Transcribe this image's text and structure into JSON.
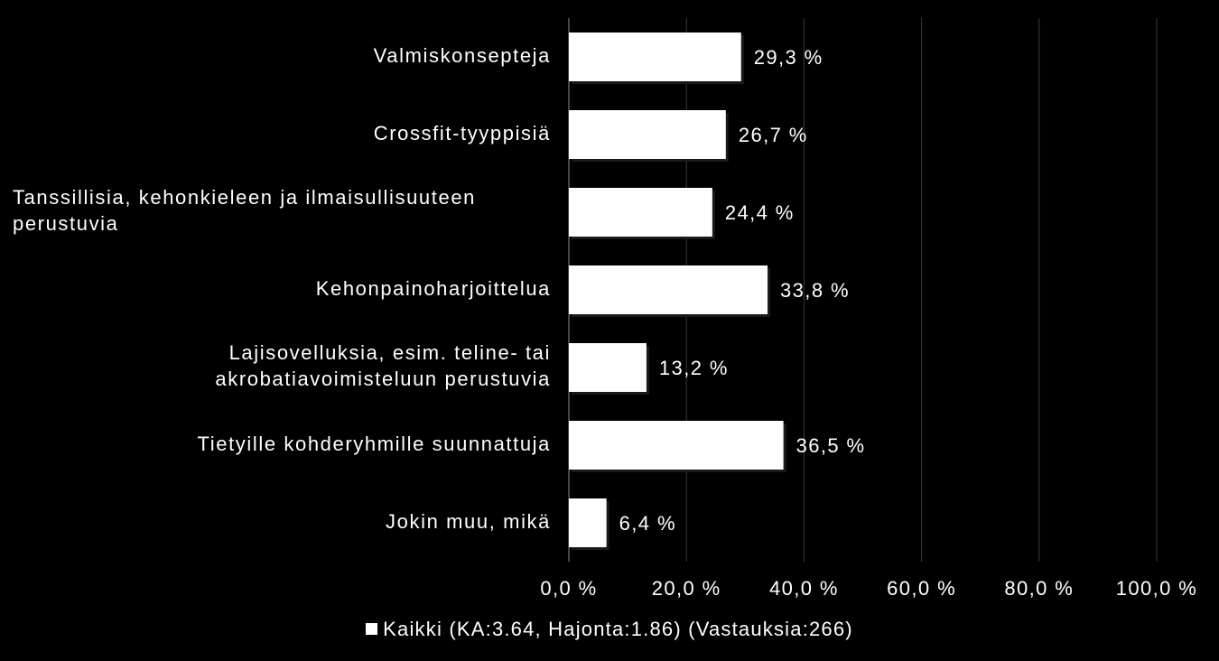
{
  "chart_data": {
    "type": "bar",
    "orientation": "horizontal",
    "categories": [
      "Valmiskonsepteja",
      "Crossfit-tyyppisiä",
      "Tanssillisia, kehonkieleen ja ilmaisullisuuteen perustuvia",
      "Kehonpainoharjoittelua",
      "Lajisovelluksia, esim. teline- tai akrobatiavoimisteluun perustuvia",
      "Tietyille kohderyhmille suunnattuja",
      "Jokin muu, mikä"
    ],
    "category_lines": [
      [
        "Valmiskonsepteja"
      ],
      [
        "Crossfit-tyyppisiä"
      ],
      [
        "Tanssillisia, kehonkieleen ja ilmaisullisuuteen",
        "perustuvia"
      ],
      [
        "Kehonpainoharjoittelua"
      ],
      [
        "Lajisovelluksia, esim. teline- tai",
        "akrobatiavoimisteluun perustuvia"
      ],
      [
        "Tietyille kohderyhmille suunnattuja"
      ],
      [
        "Jokin muu, mikä"
      ]
    ],
    "series": [
      {
        "name": "Kaikki (KA:3.64, Hajonta:1.86) (Vastauksia:266)",
        "values": [
          29.3,
          26.7,
          24.4,
          33.8,
          13.2,
          36.5,
          6.4
        ],
        "data_labels": [
          "29,3 %",
          "26,7 %",
          "24,4 %",
          "33,8 %",
          "13,2 %",
          "36,5 %",
          "6,4 %"
        ],
        "color": "#ffffff"
      }
    ],
    "x_ticks": [
      0,
      20,
      40,
      60,
      80,
      100
    ],
    "x_tick_labels": [
      "0,0 %",
      "20,0 %",
      "40,0 %",
      "60,0 %",
      "80,0 %",
      "100,0 %"
    ],
    "xlim": [
      0,
      100
    ],
    "grid": true,
    "legend_position": "bottom",
    "colors": {
      "background": "#000000",
      "bar": "#ffffff",
      "grid": "#3a3a3a",
      "text": "#ffffff"
    }
  }
}
